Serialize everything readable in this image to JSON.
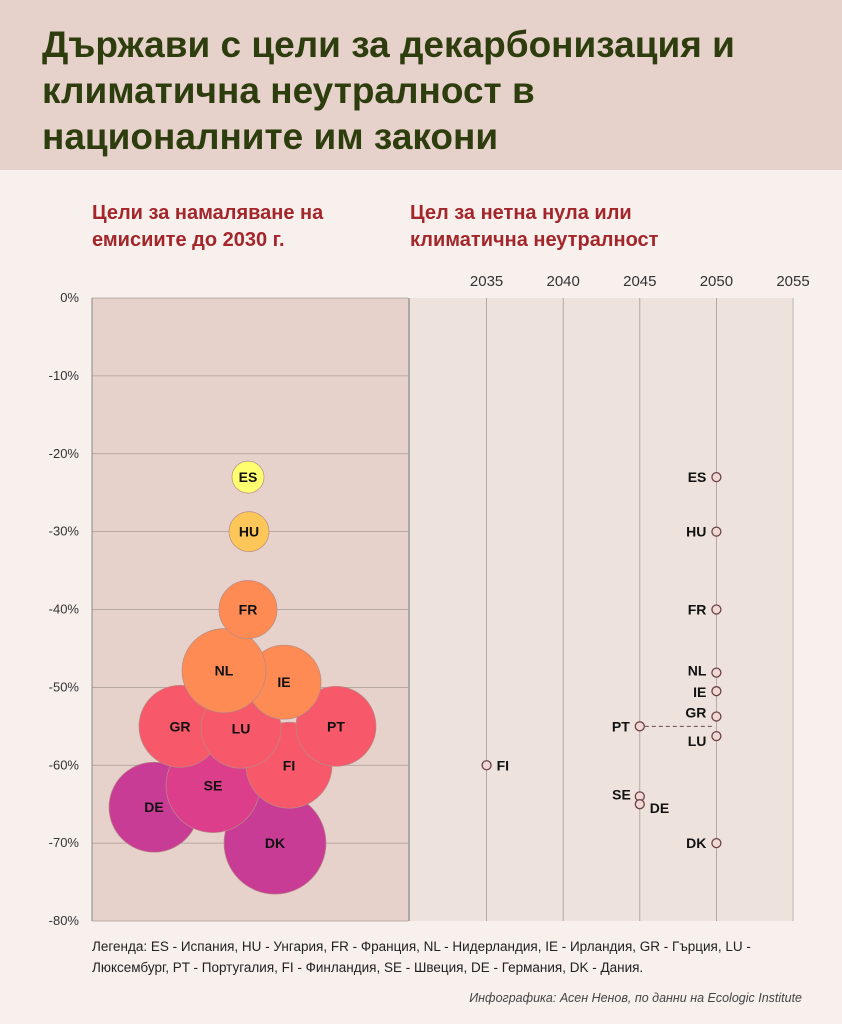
{
  "title": "Държави с цели за декарбонизация и климатична неутралност в националните им закони",
  "subtitle_left": "Цели за намаляване на емисиите до 2030 г.",
  "subtitle_right": "Цел за нетна нула или климатична неутралност",
  "legend": "Легенда: ES - Испания, HU - Унгария, FR - Франция, NL - Нидерландия, IE - Ирландия, GR - Гърция, LU - Люксембург, PT - Португалия, FI - Финландия, SE - Швеция, DE - Германия, DK - Дания.",
  "credit": "Инфографика: Асен Ненов, по данни на Ecologic Institute",
  "colors": {
    "header_bg": "#e6d2cb",
    "left_panel_bg": "#e6d2cb",
    "right_panel_bg": "#eee2dd",
    "title": "#2d3d0e",
    "subtitle": "#a3262b",
    "bubble_scale": [
      "#ffff70",
      "#fcc659",
      "#fd8b53",
      "#f7596a",
      "#dd3e8b",
      "#c83c95"
    ]
  },
  "chart_data": [
    {
      "type": "scatter",
      "name": "reduction_2030",
      "title": "Цели за намаляване на емисиите до 2030 г.",
      "ylim": [
        -80,
        0
      ],
      "yticks": [
        "0%",
        "-10%",
        "-20%",
        "-30%",
        "-40%",
        "-50%",
        "-60%",
        "-70%",
        "-80%"
      ],
      "grid": true,
      "points": [
        {
          "label": "ES",
          "y": -23,
          "color": "#ffff70"
        },
        {
          "label": "HU",
          "y": -30,
          "color": "#fcc659"
        },
        {
          "label": "FR",
          "y": -40,
          "color": "#fd8b53"
        },
        {
          "label": "NL",
          "y": -49,
          "color": "#fd8b53"
        },
        {
          "label": "IE",
          "y": -51,
          "color": "#fd8b53"
        },
        {
          "label": "GR",
          "y": -55,
          "color": "#f7596a"
        },
        {
          "label": "LU",
          "y": -55,
          "color": "#f7596a"
        },
        {
          "label": "PT",
          "y": -55,
          "color": "#f7596a"
        },
        {
          "label": "FI",
          "y": -60,
          "color": "#f7596a"
        },
        {
          "label": "SE",
          "y": -63,
          "color": "#dd3e8b"
        },
        {
          "label": "DE",
          "y": -65,
          "color": "#c83c95"
        },
        {
          "label": "DK",
          "y": -70,
          "color": "#c83c95"
        }
      ]
    },
    {
      "type": "scatter",
      "name": "net_zero_year",
      "title": "Цел за нетна нула или климатична неутралност",
      "xlim": [
        2030,
        2055
      ],
      "xticks": [
        "2035",
        "2040",
        "2045",
        "2050",
        "2055"
      ],
      "grid": true,
      "points": [
        {
          "label": "ES",
          "x": 2050,
          "y": -23
        },
        {
          "label": "HU",
          "x": 2050,
          "y": -30
        },
        {
          "label": "FR",
          "x": 2050,
          "y": -40
        },
        {
          "label": "NL",
          "x": 2050,
          "y": -49
        },
        {
          "label": "IE",
          "x": 2050,
          "y": -51
        },
        {
          "label": "GR",
          "x": 2050,
          "y": -54
        },
        {
          "label": "PT",
          "x": 2045,
          "y": -55
        },
        {
          "label": "LU",
          "x": 2050,
          "y": -56
        },
        {
          "label": "FI",
          "x": 2035,
          "y": -60
        },
        {
          "label": "SE",
          "x": 2045,
          "y": -64
        },
        {
          "label": "DE",
          "x": 2045,
          "y": -65
        },
        {
          "label": "DK",
          "x": 2050,
          "y": -70
        }
      ]
    }
  ]
}
